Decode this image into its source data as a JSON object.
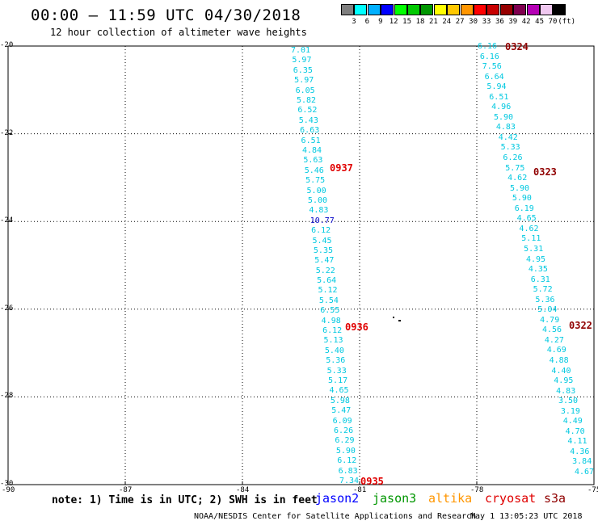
{
  "title": "00:00 – 11:59 UTC 04/30/2018",
  "subtitle": "12 hour collection of altimeter wave heights",
  "colorbar": {
    "colors": [
      "#7f7f7f",
      "#00ffff",
      "#00b0ff",
      "#0000ff",
      "#00ff00",
      "#00c800",
      "#009600",
      "#ffff00",
      "#ffc800",
      "#ff9600",
      "#ff0000",
      "#c80000",
      "#960000",
      "#7f004f",
      "#b400b4",
      "#f0c8f0",
      "#000000"
    ],
    "labels": [
      "3",
      "6",
      "9",
      "12",
      "15",
      "18",
      "21",
      "24",
      "27",
      "30",
      "33",
      "36",
      "39",
      "42",
      "45",
      "70",
      "(ft)"
    ]
  },
  "axes": {
    "xlim": [
      -90,
      -75
    ],
    "ylim": [
      -30,
      -20
    ],
    "xticks": [
      "-90",
      "-87",
      "-84",
      "-81",
      "-78",
      "-75"
    ],
    "yticks": [
      "-20",
      "-22",
      "-24",
      "-26",
      "-28",
      "-30"
    ]
  },
  "tracks": [
    {
      "name": "track-a",
      "values": [
        "7.01",
        "5.97",
        "6.35",
        "5.97",
        "6.05",
        "5.82",
        "6.52",
        "5.43",
        "6.63",
        "6.51",
        "4.84",
        "5.63",
        "5.46",
        "5.75",
        "5.00",
        "5.00",
        "4.83",
        "10.77",
        "6.12",
        "5.45",
        "5.35",
        "5.47",
        "5.22",
        "5.64",
        "5.12",
        "5.54",
        "6.55",
        "4.98",
        "6.12",
        "5.13",
        "5.40",
        "5.36",
        "5.33",
        "5.17",
        "4.65",
        "5.98",
        "5.47",
        "6.09",
        "6.26",
        "6.29",
        "5.90",
        "6.12",
        "6.83",
        "7.34"
      ]
    },
    {
      "name": "track-b",
      "values": [
        "6.16",
        "6.16",
        "7.56",
        "6.64",
        "5.94",
        "6.51",
        "4.96",
        "5.90",
        "4.83",
        "4.42",
        "5.33",
        "6.26",
        "5.75",
        "4.62",
        "5.90",
        "5.90",
        "6.19",
        "4.65",
        "4.62",
        "5.11",
        "5.31",
        "4.95",
        "4.35",
        "6.31",
        "5.72",
        "5.36",
        "5.04",
        "4.79",
        "4.56",
        "4.27",
        "4.69",
        "4.88",
        "4.40",
        "4.95",
        "4.83",
        "3.50",
        "3.19",
        "4.49",
        "4.70",
        "4.11",
        "4.36",
        "3.84",
        "4.67"
      ]
    }
  ],
  "time_labels": [
    {
      "text": "0937",
      "color": "#e00000"
    },
    {
      "text": "0936",
      "color": "#e00000"
    },
    {
      "text": "0935",
      "color": "#e00000"
    },
    {
      "text": "0324",
      "color": "#900000"
    },
    {
      "text": "0323",
      "color": "#900000"
    },
    {
      "text": "0322",
      "color": "#900000"
    }
  ],
  "note": "note: 1) Time is in UTC; 2) SWH is in feet",
  "legend": [
    {
      "text": "jason2",
      "color": "#0000ff"
    },
    {
      "text": "jason3",
      "color": "#009600"
    },
    {
      "text": "altika",
      "color": "#ff9600"
    },
    {
      "text": "cryosat",
      "color": "#e00000"
    },
    {
      "text": "s3a",
      "color": "#900000"
    }
  ],
  "footer": "NOAA/NESDIS Center for Satellite Applications and Research",
  "timestamp": "May  1 13:05:23 UTC 2018"
}
